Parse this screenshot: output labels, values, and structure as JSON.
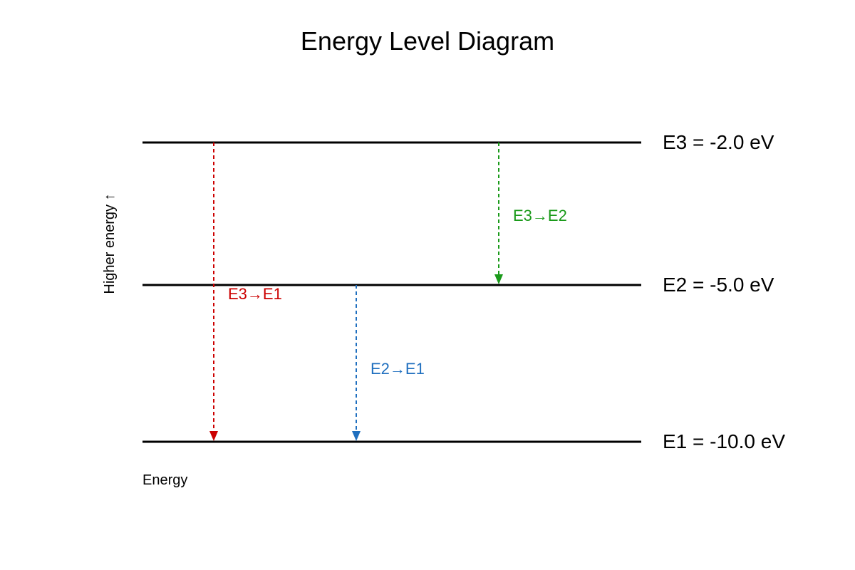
{
  "title": "Energy Level Diagram",
  "y_axis_label": "Higher energy ↑",
  "x_axis_label": "Energy",
  "levels": [
    {
      "name": "E3",
      "energy_ev": -2.0,
      "label": "E3 = -2.0 eV"
    },
    {
      "name": "E2",
      "energy_ev": -5.0,
      "label": "E2 = -5.0 eV"
    },
    {
      "name": "E1",
      "energy_ev": -10.0,
      "label": "E1 = -10.0 eV"
    }
  ],
  "transitions": [
    {
      "from": "E3",
      "to": "E1",
      "label": "E3→E1",
      "color": "#cc0000"
    },
    {
      "from": "E2",
      "to": "E1",
      "label": "E2→E1",
      "color": "#1f6fbf"
    },
    {
      "from": "E3",
      "to": "E2",
      "label": "E3→E2",
      "color": "#1a9a1a"
    }
  ],
  "colors": {
    "level_line": "#000000",
    "text": "#000000"
  }
}
